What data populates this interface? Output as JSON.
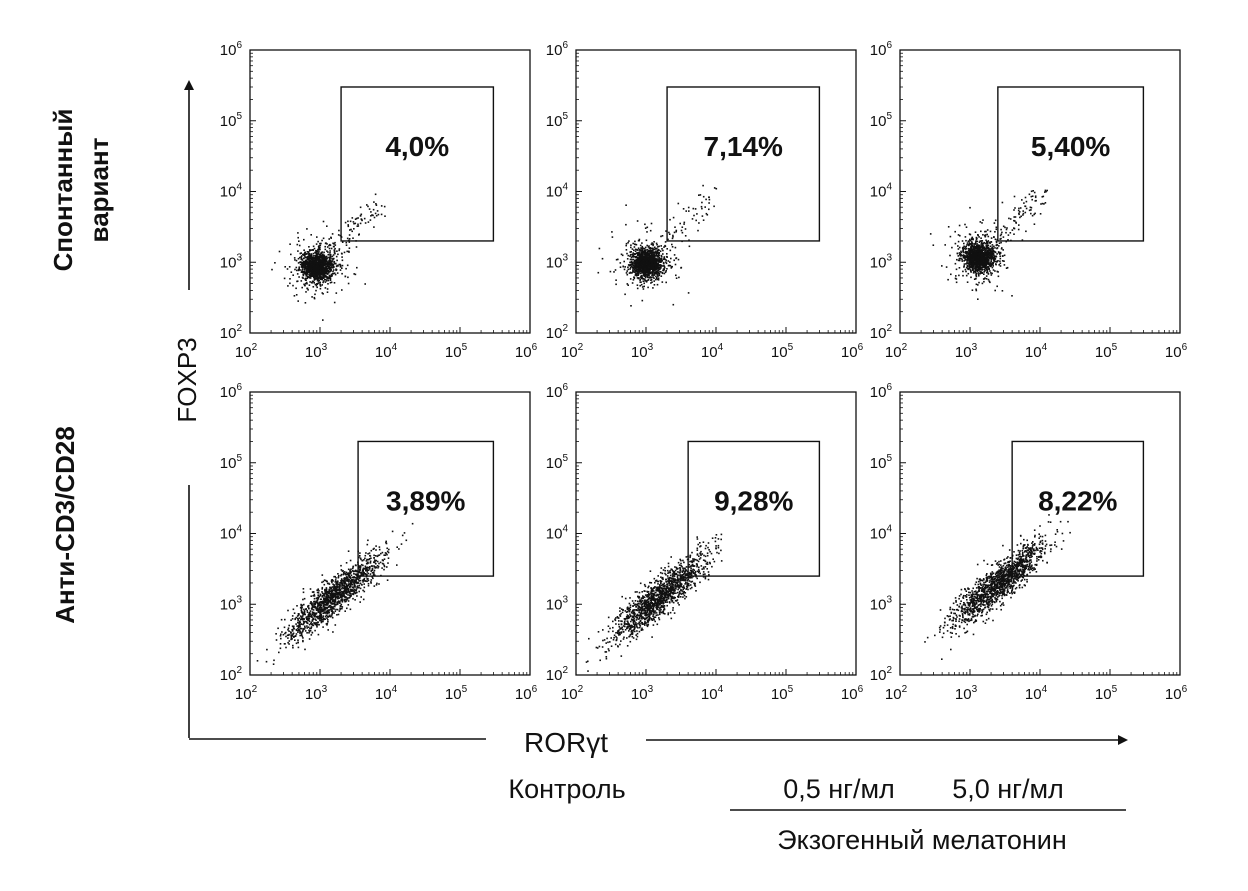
{
  "chart_data": {
    "type": "scatter",
    "xlabel": "RORγt",
    "ylabel": "FOXP3",
    "x_scale": "log10",
    "y_scale": "log10",
    "xlim": [
      100,
      1000000
    ],
    "ylim": [
      100,
      1000000
    ],
    "x_ticks": [
      {
        "base": "10",
        "exp": "2"
      },
      {
        "base": "10",
        "exp": "3"
      },
      {
        "base": "10",
        "exp": "4"
      },
      {
        "base": "10",
        "exp": "5"
      },
      {
        "base": "10",
        "exp": "6"
      }
    ],
    "y_ticks": [
      {
        "base": "10",
        "exp": "2"
      },
      {
        "base": "10",
        "exp": "3"
      },
      {
        "base": "10",
        "exp": "4"
      },
      {
        "base": "10",
        "exp": "5"
      },
      {
        "base": "10",
        "exp": "6"
      }
    ],
    "row_labels": [
      [
        "Спонтанный",
        "вариант"
      ],
      [
        "Анти-CD3/CD28"
      ]
    ],
    "column_labels": {
      "control": "Контроль",
      "dose_1": "0,5 нг/мл",
      "dose_2": "5,0 нг/мл",
      "group": "Экзогенный мелатонин"
    },
    "panels": [
      {
        "row": 0,
        "col": 0,
        "gate_label": "4,0%",
        "gate": {
          "x": [
            2000,
            300000
          ],
          "y": [
            2000,
            300000
          ]
        },
        "cloud": {
          "center": [
            900,
            900
          ],
          "diagonal": false
        }
      },
      {
        "row": 0,
        "col": 1,
        "gate_label": "7,14%",
        "gate": {
          "x": [
            2000,
            300000
          ],
          "y": [
            2000,
            300000
          ]
        },
        "cloud": {
          "center": [
            1000,
            1000
          ],
          "diagonal": false
        }
      },
      {
        "row": 0,
        "col": 2,
        "gate_label": "5,40%",
        "gate": {
          "x": [
            2500,
            300000
          ],
          "y": [
            2000,
            300000
          ]
        },
        "cloud": {
          "center": [
            1300,
            1200
          ],
          "diagonal": false
        }
      },
      {
        "row": 1,
        "col": 0,
        "gate_label": "3,89%",
        "gate": {
          "x": [
            3500,
            300000
          ],
          "y": [
            2500,
            200000
          ]
        },
        "cloud": {
          "center": [
            1500,
            1300
          ],
          "diagonal": true
        }
      },
      {
        "row": 1,
        "col": 1,
        "gate_label": "9,28%",
        "gate": {
          "x": [
            4000,
            300000
          ],
          "y": [
            2500,
            200000
          ]
        },
        "cloud": {
          "center": [
            1500,
            1300
          ],
          "diagonal": true
        }
      },
      {
        "row": 1,
        "col": 2,
        "gate_label": "8,22%",
        "gate": {
          "x": [
            4000,
            300000
          ],
          "y": [
            2500,
            200000
          ]
        },
        "cloud": {
          "center": [
            2500,
            2000
          ],
          "diagonal": true
        }
      }
    ]
  }
}
